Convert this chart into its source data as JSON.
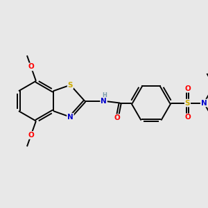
{
  "background_color": "#e8e8e8",
  "figsize": [
    3.0,
    3.0
  ],
  "dpi": 100,
  "colors": {
    "C": "#000000",
    "N": "#0000cc",
    "O": "#ff0000",
    "S_thz": "#ccaa00",
    "S_sulf": "#ccaa00",
    "H": "#7a9aaa",
    "bond": "#000000"
  },
  "font_size": 7.5
}
